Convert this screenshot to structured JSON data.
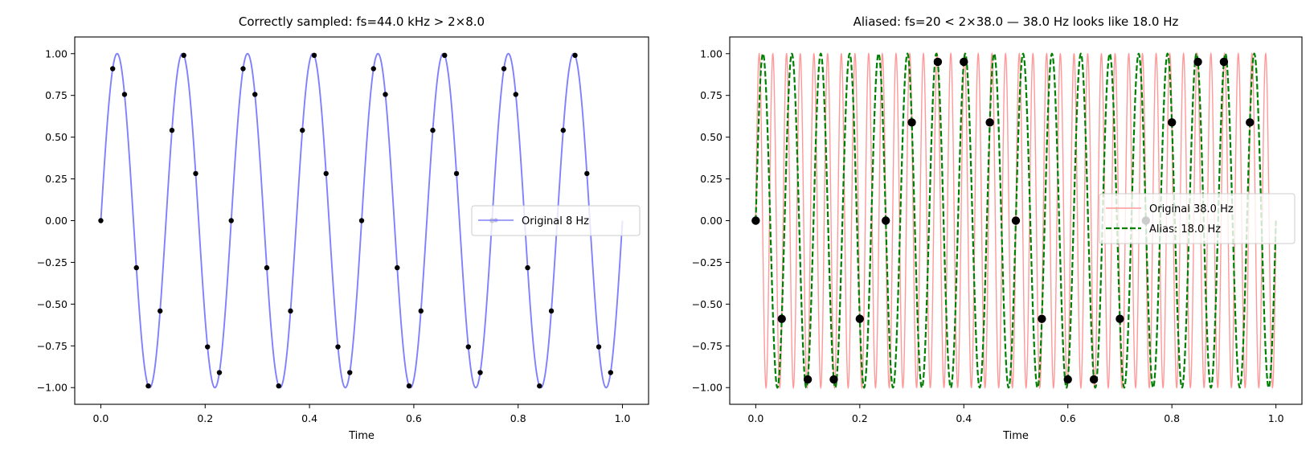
{
  "chart_data": [
    {
      "type": "line",
      "title": "Correctly sampled: fs=44.0 kHz > 2×8.0",
      "xlabel": "Time",
      "ylabel": "",
      "xlim": [
        -0.05,
        1.05
      ],
      "ylim": [
        -1.1,
        1.1
      ],
      "xticks": [
        "0.0",
        "0.2",
        "0.4",
        "0.6",
        "0.8",
        "1.0"
      ],
      "yticks": [
        "−1.00",
        "−0.75",
        "−0.50",
        "−0.25",
        "0.00",
        "0.25",
        "0.50",
        "0.75",
        "1.00"
      ],
      "legend_position": "center-right",
      "series": [
        {
          "name": "Original 8 Hz",
          "kind": "sine",
          "frequency_hz": 8,
          "color": "#8080ff",
          "style": "solid"
        }
      ],
      "samples": {
        "sample_rate": 44,
        "y_cycle": [
          0,
          0.91,
          0.756,
          -0.282,
          -0.99,
          -0.541,
          0.541,
          0.99,
          0.282,
          -0.756,
          -0.91
        ],
        "count": 44,
        "color": "#000000"
      }
    },
    {
      "type": "line",
      "title": "Aliased: fs=20 < 2×38.0 — 38.0 Hz looks like 18.0 Hz",
      "xlabel": "Time",
      "ylabel": "",
      "xlim": [
        -0.05,
        1.05
      ],
      "ylim": [
        -1.1,
        1.1
      ],
      "xticks": [
        "0.0",
        "0.2",
        "0.4",
        "0.6",
        "0.8",
        "1.0"
      ],
      "yticks": [
        "−1.00",
        "−0.75",
        "−0.50",
        "−0.25",
        "0.00",
        "0.25",
        "0.50",
        "0.75",
        "1.00"
      ],
      "legend_position": "center-right",
      "series": [
        {
          "name": "Original 38.0 Hz",
          "kind": "sine",
          "frequency_hz": 38,
          "color": "#ff9999",
          "style": "solid"
        },
        {
          "name": "Alias: 18.0 Hz",
          "kind": "sine",
          "frequency_hz": 18,
          "color": "#008000",
          "style": "dashed"
        }
      ],
      "samples": {
        "sample_rate": 20,
        "y_cycle": [
          0,
          -0.588,
          -0.951,
          -0.951,
          -0.588,
          0,
          0.588,
          0.951,
          0.951,
          0.588
        ],
        "count": 20,
        "color": "#000000"
      }
    }
  ]
}
